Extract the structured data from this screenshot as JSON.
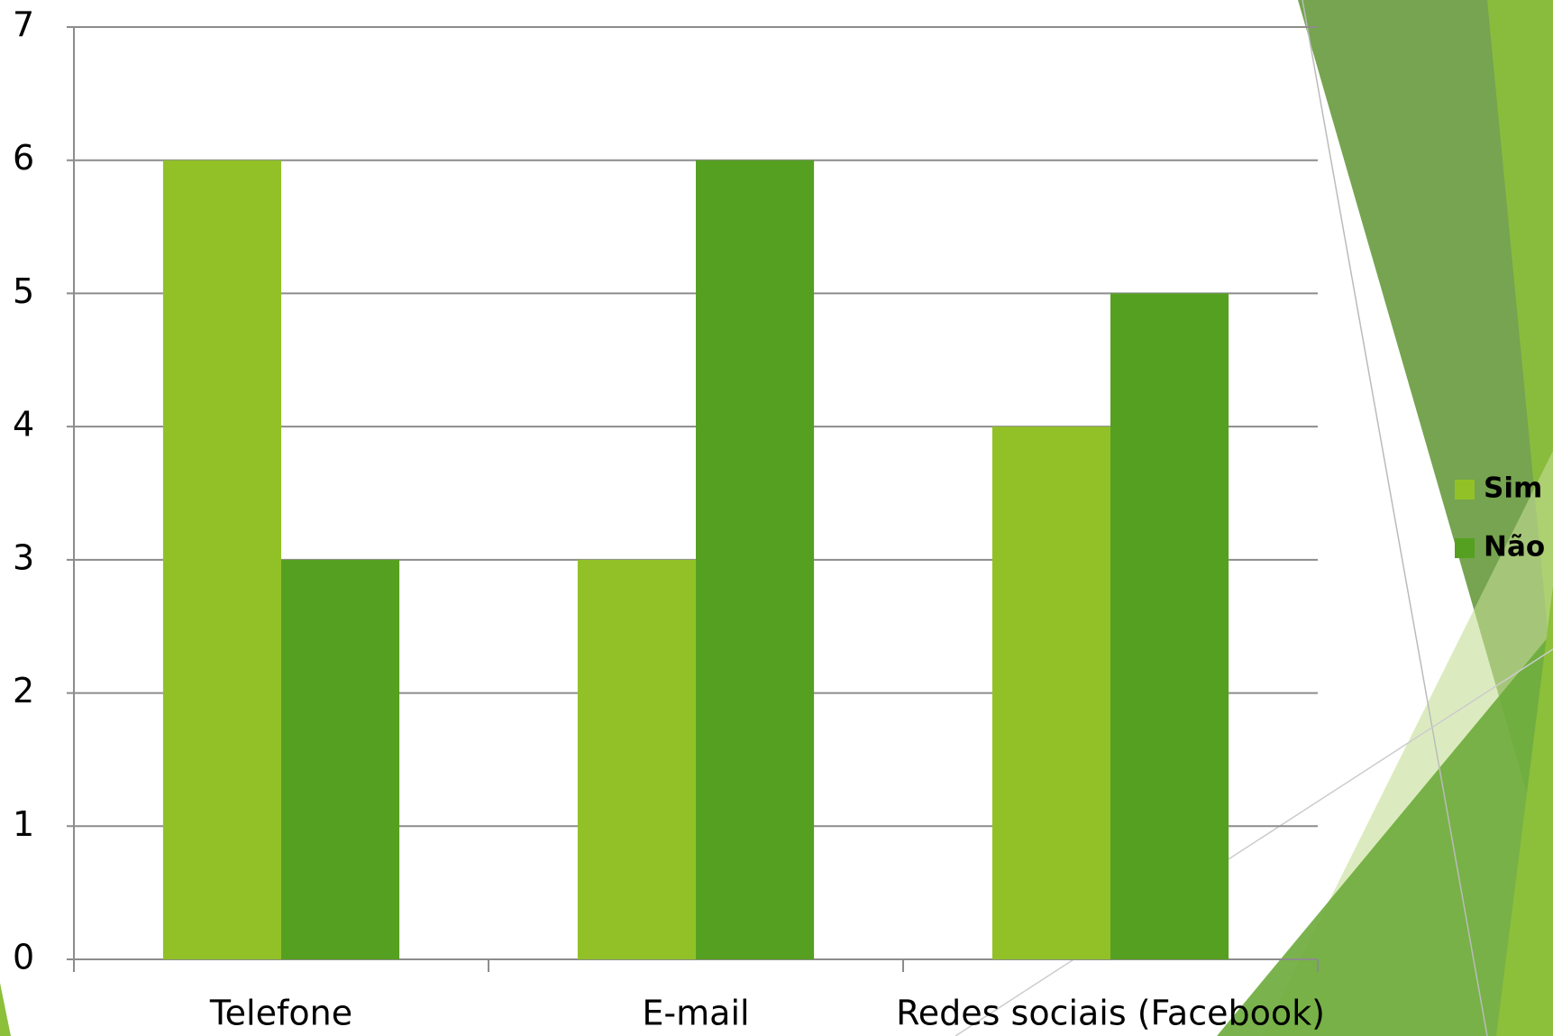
{
  "chart_data": {
    "type": "bar",
    "categories": [
      "Telefone",
      "E-mail",
      "Redes sociais (Facebook)"
    ],
    "series": [
      {
        "name": "Sim",
        "color": "#92c127",
        "values": [
          6,
          3,
          4
        ]
      },
      {
        "name": "Não",
        "color": "#55a021",
        "values": [
          3,
          6,
          5
        ]
      }
    ],
    "ylim": [
      0,
      7
    ],
    "yticks": [
      0,
      1,
      2,
      3,
      4,
      5,
      6,
      7
    ],
    "grid": true,
    "legend": "right"
  }
}
